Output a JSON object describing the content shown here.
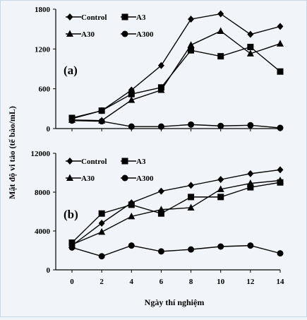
{
  "chart_data": {
    "type": "line",
    "xlabel": "Ngày thí nghiệm",
    "ylabel": "Mật độ vi tảo (tế bào/mL)",
    "x": [
      0,
      2,
      4,
      6,
      8,
      10,
      12,
      14
    ],
    "legend_position": "top-left",
    "colors": {
      "series": "#000000",
      "axis": "#000000",
      "background": "#f1f5f9"
    },
    "panels": [
      {
        "label": "(a)",
        "ylim": [
          0,
          1800
        ],
        "yticks": [
          0,
          600,
          1200,
          1800
        ],
        "series": [
          {
            "name": "Control",
            "marker": "diamond",
            "values": [
              150,
              270,
              580,
              950,
              1650,
              1730,
              1420,
              1540
            ]
          },
          {
            "name": "A3",
            "marker": "square",
            "values": [
              160,
              270,
              520,
              620,
              1180,
              1090,
              1230,
              860
            ]
          },
          {
            "name": "A30",
            "marker": "triangle",
            "values": [
              130,
              120,
              430,
              580,
              1260,
              1470,
              1130,
              1280
            ]
          },
          {
            "name": "A300",
            "marker": "circle",
            "values": [
              120,
              110,
              30,
              30,
              60,
              40,
              50,
              10
            ]
          }
        ]
      },
      {
        "label": "(b)",
        "ylim": [
          0,
          12000
        ],
        "yticks": [
          0,
          4000,
          8000,
          12000
        ],
        "series": [
          {
            "name": "Control",
            "marker": "diamond",
            "values": [
              2500,
              4800,
              6900,
              8100,
              8700,
              9300,
              9900,
              10300
            ]
          },
          {
            "name": "A3",
            "marker": "square",
            "values": [
              2800,
              5800,
              6700,
              5800,
              7500,
              7500,
              8500,
              9000
            ]
          },
          {
            "name": "A30",
            "marker": "triangle",
            "values": [
              2600,
              3900,
              5500,
              6200,
              6400,
              8300,
              8900,
              9200
            ]
          },
          {
            "name": "A300",
            "marker": "circle",
            "values": [
              2300,
              1400,
              2500,
              1900,
              2100,
              2400,
              2500,
              1700
            ]
          }
        ]
      }
    ]
  }
}
